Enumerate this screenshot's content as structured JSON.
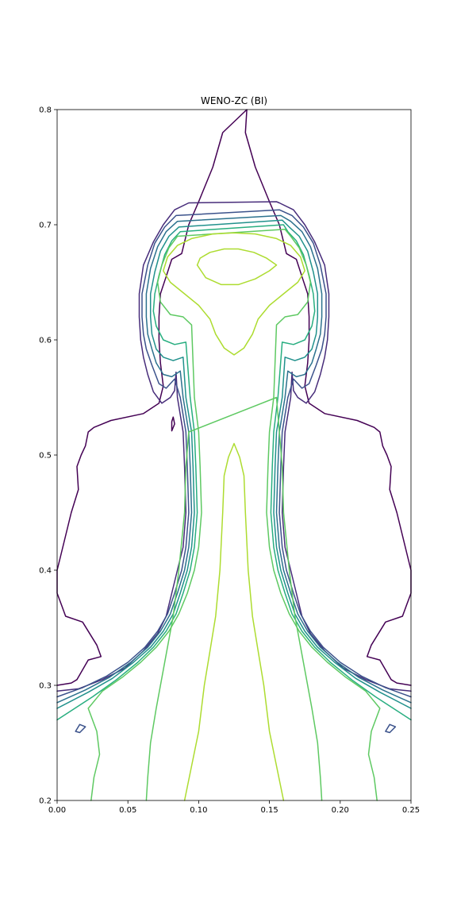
{
  "chart_data": {
    "type": "contour",
    "title": "WENO-ZC (BI)",
    "xlabel": "",
    "ylabel": "",
    "xlim": [
      0.0,
      0.25
    ],
    "ylim": [
      0.2,
      0.8
    ],
    "grid": false,
    "x_ticks": [
      "0.00",
      "0.05",
      "0.10",
      "0.15",
      "0.20",
      "0.25"
    ],
    "y_ticks": [
      "0.2",
      "0.3",
      "0.4",
      "0.5",
      "0.6",
      "0.7",
      "0.8"
    ],
    "colormap": "viridis",
    "levels": [
      {
        "color": "#440154",
        "right": [
          [
            0.116,
            0.8
          ],
          [
            0.117,
            0.78
          ],
          [
            0.11,
            0.75
          ],
          [
            0.1,
            0.72
          ],
          [
            0.093,
            0.7
          ],
          [
            0.088,
            0.675
          ],
          [
            0.081,
            0.67
          ],
          [
            0.077,
            0.655
          ],
          [
            0.073,
            0.64
          ],
          [
            0.072,
            0.62
          ],
          [
            0.072,
            0.6
          ],
          [
            0.073,
            0.58
          ],
          [
            0.075,
            0.56
          ],
          [
            0.072,
            0.545
          ],
          [
            0.061,
            0.536
          ],
          [
            0.038,
            0.53
          ],
          [
            0.026,
            0.524
          ],
          [
            0.022,
            0.52
          ],
          [
            0.02,
            0.508
          ],
          [
            0.017,
            0.5
          ],
          [
            0.014,
            0.49
          ],
          [
            0.015,
            0.47
          ],
          [
            0.01,
            0.45
          ],
          [
            0.006,
            0.43
          ],
          [
            0.002,
            0.41
          ],
          [
            0.0,
            0.4
          ],
          [
            0.0,
            0.38
          ],
          [
            0.003,
            0.37
          ],
          [
            0.006,
            0.36
          ],
          [
            0.018,
            0.355
          ],
          [
            0.028,
            0.335
          ],
          [
            0.031,
            0.325
          ],
          [
            0.022,
            0.322
          ],
          [
            0.014,
            0.305
          ],
          [
            0.01,
            0.302
          ],
          [
            0.0,
            0.3
          ]
        ]
      },
      {
        "color": "#472c7a",
        "right": [
          [
            0.095,
            0.72
          ],
          [
            0.093,
            0.719
          ],
          [
            0.083,
            0.713
          ],
          [
            0.075,
            0.7
          ],
          [
            0.068,
            0.685
          ],
          [
            0.061,
            0.665
          ],
          [
            0.058,
            0.64
          ],
          [
            0.058,
            0.62
          ],
          [
            0.059,
            0.6
          ],
          [
            0.061,
            0.585
          ],
          [
            0.064,
            0.57
          ],
          [
            0.068,
            0.555
          ],
          [
            0.074,
            0.545
          ],
          [
            0.08,
            0.55
          ],
          [
            0.083,
            0.556
          ],
          [
            0.084,
            0.572
          ],
          [
            0.085,
            0.55
          ],
          [
            0.089,
            0.52
          ],
          [
            0.09,
            0.49
          ],
          [
            0.091,
            0.45
          ],
          [
            0.089,
            0.42
          ],
          [
            0.085,
            0.4
          ],
          [
            0.081,
            0.38
          ],
          [
            0.077,
            0.36
          ],
          [
            0.071,
            0.345
          ],
          [
            0.061,
            0.33
          ],
          [
            0.048,
            0.315
          ],
          [
            0.032,
            0.305
          ],
          [
            0.015,
            0.297
          ],
          [
            0.0,
            0.295
          ]
        ]
      },
      {
        "color": "#3b528b",
        "right": [
          [
            0.093,
            0.713
          ],
          [
            0.084,
            0.708
          ],
          [
            0.076,
            0.698
          ],
          [
            0.069,
            0.684
          ],
          [
            0.064,
            0.665
          ],
          [
            0.06,
            0.64
          ],
          [
            0.06,
            0.62
          ],
          [
            0.061,
            0.605
          ],
          [
            0.063,
            0.592
          ],
          [
            0.067,
            0.578
          ],
          [
            0.072,
            0.562
          ],
          [
            0.077,
            0.558
          ],
          [
            0.083,
            0.566
          ],
          [
            0.087,
            0.55
          ],
          [
            0.091,
            0.52
          ],
          [
            0.092,
            0.49
          ],
          [
            0.093,
            0.45
          ],
          [
            0.091,
            0.42
          ],
          [
            0.088,
            0.4
          ],
          [
            0.083,
            0.38
          ],
          [
            0.078,
            0.362
          ],
          [
            0.071,
            0.347
          ],
          [
            0.062,
            0.333
          ],
          [
            0.05,
            0.32
          ],
          [
            0.035,
            0.308
          ],
          [
            0.018,
            0.298
          ],
          [
            0.0,
            0.29
          ]
        ]
      },
      {
        "color": "#2c728e",
        "right": [
          [
            0.092,
            0.708
          ],
          [
            0.085,
            0.703
          ],
          [
            0.077,
            0.694
          ],
          [
            0.071,
            0.681
          ],
          [
            0.066,
            0.662
          ],
          [
            0.063,
            0.64
          ],
          [
            0.063,
            0.62
          ],
          [
            0.064,
            0.605
          ],
          [
            0.067,
            0.592
          ],
          [
            0.07,
            0.58
          ],
          [
            0.075,
            0.57
          ],
          [
            0.081,
            0.568
          ],
          [
            0.087,
            0.573
          ],
          [
            0.089,
            0.55
          ],
          [
            0.093,
            0.52
          ],
          [
            0.094,
            0.49
          ],
          [
            0.095,
            0.45
          ],
          [
            0.093,
            0.42
          ],
          [
            0.09,
            0.4
          ],
          [
            0.085,
            0.38
          ],
          [
            0.08,
            0.362
          ],
          [
            0.073,
            0.347
          ],
          [
            0.064,
            0.333
          ],
          [
            0.052,
            0.32
          ],
          [
            0.037,
            0.307
          ],
          [
            0.02,
            0.296
          ],
          [
            0.0,
            0.285
          ]
        ]
      },
      {
        "color": "#21918c",
        "right": [
          [
            0.091,
            0.704
          ],
          [
            0.086,
            0.698
          ],
          [
            0.079,
            0.69
          ],
          [
            0.073,
            0.677
          ],
          [
            0.069,
            0.659
          ],
          [
            0.066,
            0.64
          ],
          [
            0.066,
            0.62
          ],
          [
            0.067,
            0.605
          ],
          [
            0.07,
            0.592
          ],
          [
            0.075,
            0.585
          ],
          [
            0.082,
            0.582
          ],
          [
            0.089,
            0.585
          ],
          [
            0.091,
            0.55
          ],
          [
            0.095,
            0.52
          ],
          [
            0.096,
            0.49
          ],
          [
            0.097,
            0.45
          ],
          [
            0.095,
            0.42
          ],
          [
            0.092,
            0.4
          ],
          [
            0.087,
            0.38
          ],
          [
            0.082,
            0.362
          ],
          [
            0.075,
            0.347
          ],
          [
            0.066,
            0.333
          ],
          [
            0.054,
            0.32
          ],
          [
            0.039,
            0.306
          ],
          [
            0.022,
            0.294
          ],
          [
            0.0,
            0.28
          ]
        ]
      },
      {
        "color": "#28ae80",
        "right": [
          [
            0.09,
            0.7
          ],
          [
            0.087,
            0.694
          ],
          [
            0.081,
            0.686
          ],
          [
            0.076,
            0.674
          ],
          [
            0.072,
            0.656
          ],
          [
            0.069,
            0.64
          ],
          [
            0.068,
            0.625
          ],
          [
            0.07,
            0.612
          ],
          [
            0.075,
            0.6
          ],
          [
            0.083,
            0.596
          ],
          [
            0.091,
            0.598
          ],
          [
            0.094,
            0.55
          ],
          [
            0.097,
            0.52
          ],
          [
            0.098,
            0.49
          ],
          [
            0.099,
            0.45
          ],
          [
            0.097,
            0.42
          ],
          [
            0.094,
            0.4
          ],
          [
            0.089,
            0.38
          ],
          [
            0.084,
            0.362
          ],
          [
            0.077,
            0.347
          ],
          [
            0.068,
            0.333
          ],
          [
            0.057,
            0.32
          ],
          [
            0.042,
            0.305
          ],
          [
            0.025,
            0.29
          ],
          [
            0.0,
            0.27
          ]
        ]
      },
      {
        "color": "#5ec962",
        "right": [
          [
            0.089,
            0.696
          ],
          [
            0.085,
            0.69
          ],
          [
            0.079,
            0.68
          ],
          [
            0.074,
            0.665
          ],
          [
            0.071,
            0.65
          ],
          [
            0.073,
            0.633
          ],
          [
            0.08,
            0.622
          ],
          [
            0.089,
            0.62
          ],
          [
            0.095,
            0.613
          ],
          [
            0.097,
            0.55
          ],
          [
            0.1,
            0.52
          ],
          [
            0.101,
            0.49
          ],
          [
            0.102,
            0.45
          ],
          [
            0.1,
            0.42
          ],
          [
            0.097,
            0.4
          ],
          [
            0.092,
            0.38
          ],
          [
            0.086,
            0.362
          ],
          [
            0.079,
            0.347
          ],
          [
            0.07,
            0.333
          ],
          [
            0.059,
            0.32
          ],
          [
            0.046,
            0.307
          ],
          [
            0.032,
            0.295
          ],
          [
            0.022,
            0.28
          ],
          [
            0.028,
            0.26
          ],
          [
            0.03,
            0.24
          ],
          [
            0.026,
            0.22
          ],
          [
            0.024,
            0.2
          ]
        ]
      },
      {
        "color": "#addc30",
        "right": [
          [
            0.125,
            0.587
          ],
          [
            0.118,
            0.593
          ],
          [
            0.112,
            0.605
          ],
          [
            0.108,
            0.618
          ],
          [
            0.1,
            0.63
          ],
          [
            0.09,
            0.64
          ],
          [
            0.08,
            0.65
          ],
          [
            0.075,
            0.66
          ],
          [
            0.078,
            0.672
          ],
          [
            0.085,
            0.682
          ],
          [
            0.095,
            0.688
          ],
          [
            0.11,
            0.692
          ],
          [
            0.125,
            0.693
          ]
        ]
      },
      {
        "color": "#addc30",
        "right": [
          [
            0.125,
            0.51
          ],
          [
            0.121,
            0.498
          ],
          [
            0.118,
            0.482
          ],
          [
            0.117,
            0.45
          ],
          [
            0.115,
            0.4
          ],
          [
            0.112,
            0.36
          ],
          [
            0.108,
            0.33
          ],
          [
            0.104,
            0.3
          ],
          [
            0.1,
            0.26
          ],
          [
            0.095,
            0.23
          ],
          [
            0.09,
            0.2
          ]
        ]
      },
      {
        "color": "#5ec962",
        "right": [
          [
            0.095,
            0.55
          ],
          [
            0.093,
            0.52
          ],
          [
            0.091,
            0.49
          ],
          [
            0.09,
            0.45
          ],
          [
            0.086,
            0.4
          ],
          [
            0.082,
            0.36
          ],
          [
            0.076,
            0.32
          ],
          [
            0.07,
            0.28
          ],
          [
            0.066,
            0.25
          ],
          [
            0.064,
            0.22
          ],
          [
            0.063,
            0.2
          ]
        ]
      }
    ],
    "free_lines": [
      {
        "color": "#addc30",
        "points": [
          [
            0.099,
            0.665
          ],
          [
            0.101,
            0.671
          ],
          [
            0.108,
            0.676
          ],
          [
            0.118,
            0.679
          ],
          [
            0.128,
            0.679
          ],
          [
            0.139,
            0.676
          ],
          [
            0.148,
            0.671
          ],
          [
            0.155,
            0.665
          ],
          [
            0.15,
            0.66
          ],
          [
            0.14,
            0.653
          ],
          [
            0.128,
            0.648
          ],
          [
            0.116,
            0.648
          ],
          [
            0.105,
            0.654
          ],
          [
            0.099,
            0.665
          ]
        ]
      },
      {
        "color": "#440154",
        "points": [
          [
            0.081,
            0.529
          ],
          [
            0.082,
            0.533
          ],
          [
            0.083,
            0.527
          ],
          [
            0.081,
            0.521
          ],
          [
            0.081,
            0.529
          ]
        ]
      },
      {
        "color": "#3b528b",
        "points": [
          [
            0.013,
            0.26
          ],
          [
            0.016,
            0.266
          ],
          [
            0.02,
            0.264
          ],
          [
            0.016,
            0.259
          ],
          [
            0.013,
            0.26
          ]
        ]
      },
      {
        "color": "#3b528b",
        "points": [
          [
            0.232,
            0.26
          ],
          [
            0.235,
            0.266
          ],
          [
            0.239,
            0.264
          ],
          [
            0.235,
            0.259
          ],
          [
            0.232,
            0.26
          ]
        ]
      }
    ]
  }
}
